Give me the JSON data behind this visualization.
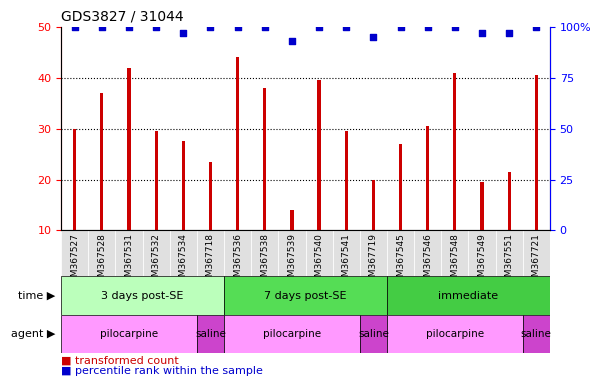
{
  "title": "GDS3827 / 31044",
  "samples": [
    "GSM367527",
    "GSM367528",
    "GSM367531",
    "GSM367532",
    "GSM367534",
    "GSM367718",
    "GSM367536",
    "GSM367538",
    "GSM367539",
    "GSM367540",
    "GSM367541",
    "GSM367719",
    "GSM367545",
    "GSM367546",
    "GSM367548",
    "GSM367549",
    "GSM367551",
    "GSM367721"
  ],
  "bar_values": [
    30,
    37,
    42,
    29.5,
    27.5,
    23.5,
    44,
    38,
    14,
    39.5,
    29.5,
    20,
    27,
    30.5,
    41,
    19.5,
    21.5,
    40.5
  ],
  "percentile_values": [
    100,
    100,
    100,
    100,
    97,
    100,
    100,
    100,
    93,
    100,
    100,
    95,
    100,
    100,
    100,
    97,
    97,
    100
  ],
  "bar_color": "#CC0000",
  "dot_color": "#0000CC",
  "ylim_left": [
    10,
    50
  ],
  "ylim_right": [
    0,
    100
  ],
  "yticks_left": [
    10,
    20,
    30,
    40,
    50
  ],
  "yticks_right": [
    0,
    25,
    50,
    75,
    100
  ],
  "grid_lines": [
    20,
    30,
    40
  ],
  "time_groups": [
    {
      "label": "3 days post-SE",
      "start": 0,
      "end": 6,
      "color": "#BBFFBB"
    },
    {
      "label": "7 days post-SE",
      "start": 6,
      "end": 12,
      "color": "#55DD55"
    },
    {
      "label": "immediate",
      "start": 12,
      "end": 18,
      "color": "#44CC44"
    }
  ],
  "agent_groups": [
    {
      "label": "pilocarpine",
      "start": 0,
      "end": 5,
      "color": "#FF99FF"
    },
    {
      "label": "saline",
      "start": 5,
      "end": 6,
      "color": "#CC44CC"
    },
    {
      "label": "pilocarpine",
      "start": 6,
      "end": 11,
      "color": "#FF99FF"
    },
    {
      "label": "saline",
      "start": 11,
      "end": 12,
      "color": "#CC44CC"
    },
    {
      "label": "pilocarpine",
      "start": 12,
      "end": 17,
      "color": "#FF99FF"
    },
    {
      "label": "saline",
      "start": 17,
      "end": 18,
      "color": "#CC44CC"
    }
  ],
  "legend_items": [
    {
      "label": "transformed count",
      "color": "#CC0000"
    },
    {
      "label": "percentile rank within the sample",
      "color": "#0000CC"
    }
  ],
  "bar_width": 0.12,
  "dot_size": 18,
  "label_row_color": "#E0E0E0",
  "sample_fontsize": 6.5,
  "tick_fontsize": 8,
  "title_fontsize": 10,
  "legend_fontsize": 8
}
